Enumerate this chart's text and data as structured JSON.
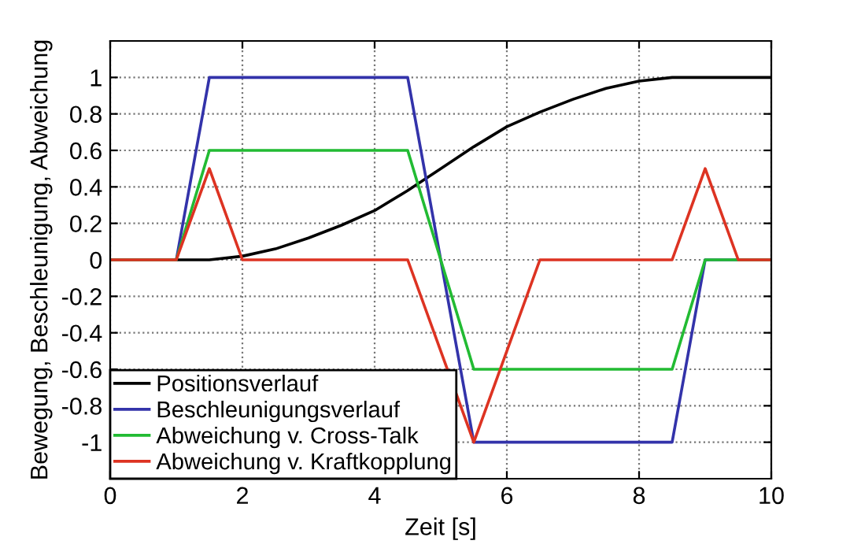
{
  "chart_data": {
    "type": "line",
    "xlabel": "Zeit [s]",
    "ylabel": "Bewegung, Beschleunigung, Abweichung",
    "xlim": [
      0,
      10
    ],
    "ylim": [
      -1.2,
      1.2
    ],
    "xticks": [
      0,
      2,
      4,
      6,
      8,
      10
    ],
    "yticks": [
      -1,
      -0.8,
      -0.6,
      -0.4,
      -0.2,
      0,
      0.2,
      0.4,
      0.6,
      0.8,
      1
    ],
    "grid": true,
    "legend": "bottom left",
    "line_style": "solid",
    "marker": "none",
    "series": [
      {
        "name": "Positionsverlauf",
        "color": "#000000",
        "x": [
          0,
          1,
          1.5,
          2,
          2.5,
          3,
          3.5,
          4,
          4.5,
          5,
          5.5,
          6,
          6.5,
          7,
          7.5,
          8,
          8.5,
          9,
          10
        ],
        "values": [
          0,
          0,
          0.0,
          0.02,
          0.06,
          0.12,
          0.19,
          0.27,
          0.38,
          0.5,
          0.62,
          0.73,
          0.81,
          0.88,
          0.94,
          0.98,
          1.0,
          1,
          1
        ]
      },
      {
        "name": "Beschleunigungsverlauf",
        "color": "#3333aa",
        "x": [
          0,
          1,
          1.5,
          4.5,
          5.5,
          8.5,
          9,
          10
        ],
        "values": [
          0,
          0,
          1,
          1,
          -1,
          -1,
          0,
          0
        ]
      },
      {
        "name": "Abweichung v. Cross-Talk",
        "color": "#22bb33",
        "x": [
          0,
          1,
          1.5,
          4.5,
          5.5,
          8.5,
          9,
          10
        ],
        "values": [
          0,
          0,
          0.6,
          0.6,
          -0.6,
          -0.6,
          0,
          0
        ]
      },
      {
        "name": "Abweichung v. Kraftkopplung",
        "color": "#dd3322",
        "x": [
          0,
          1,
          1.5,
          2,
          4.5,
          5.5,
          6.5,
          8.5,
          9,
          9.5,
          10
        ],
        "values": [
          0,
          0,
          0.5,
          0,
          0,
          -1,
          0,
          0,
          0.5,
          0,
          0
        ]
      }
    ]
  }
}
